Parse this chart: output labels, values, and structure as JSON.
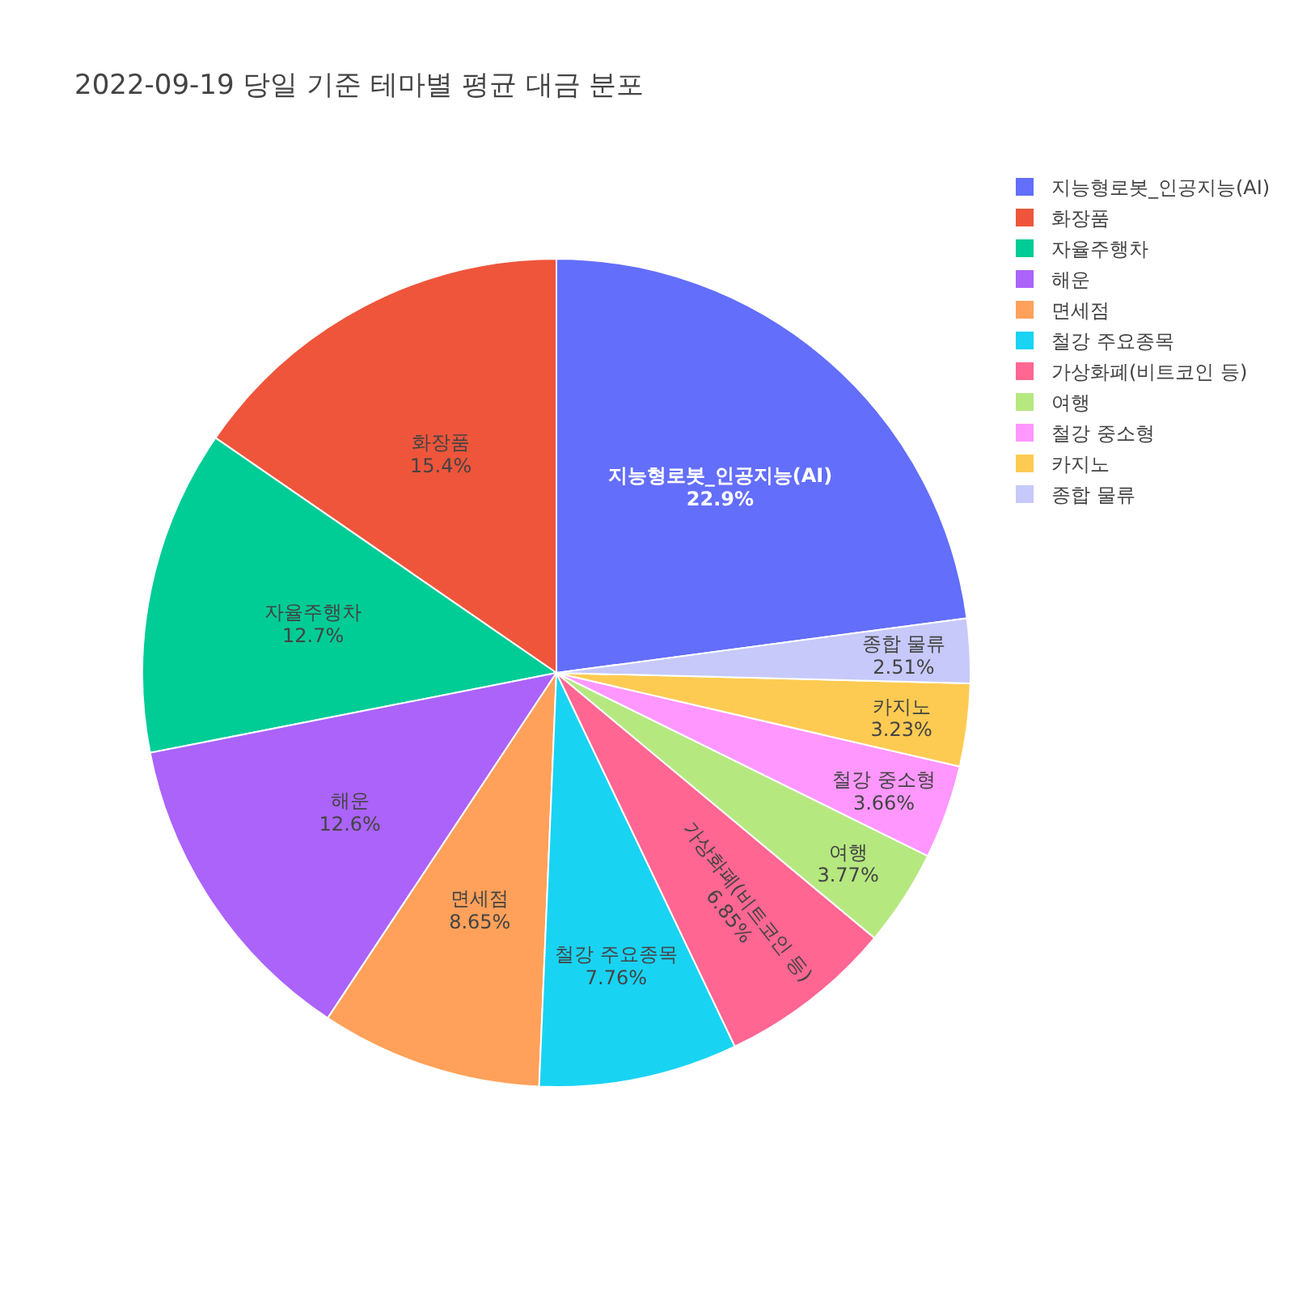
{
  "chart_data": {
    "type": "pie",
    "title": "2022-09-19 당일 기준 테마별 평균 대금 분포",
    "categories": [
      "지능형로봇_인공지능(AI)",
      "화장품",
      "자율주행차",
      "해운",
      "면세점",
      "철강 주요종목",
      "가상화폐(비트코인 등)",
      "여행",
      "철강 중소형",
      "카지노",
      "종합 물류"
    ],
    "values": [
      22.9,
      15.4,
      12.7,
      12.6,
      8.65,
      7.76,
      6.85,
      3.77,
      3.66,
      3.23,
      2.51
    ],
    "colors": [
      "#636efa",
      "#ef553b",
      "#00cc96",
      "#ab63fa",
      "#ffa15a",
      "#19d3f3",
      "#ff6692",
      "#b6e880",
      "#ff97ff",
      "#fecb52",
      "#c6c9fa"
    ],
    "value_labels": [
      "22.9%",
      "15.4%",
      "12.7%",
      "12.6%",
      "8.65%",
      "7.76%",
      "6.85%",
      "3.77%",
      "3.66%",
      "3.23%",
      "2.51%"
    ],
    "legend": "top right"
  }
}
